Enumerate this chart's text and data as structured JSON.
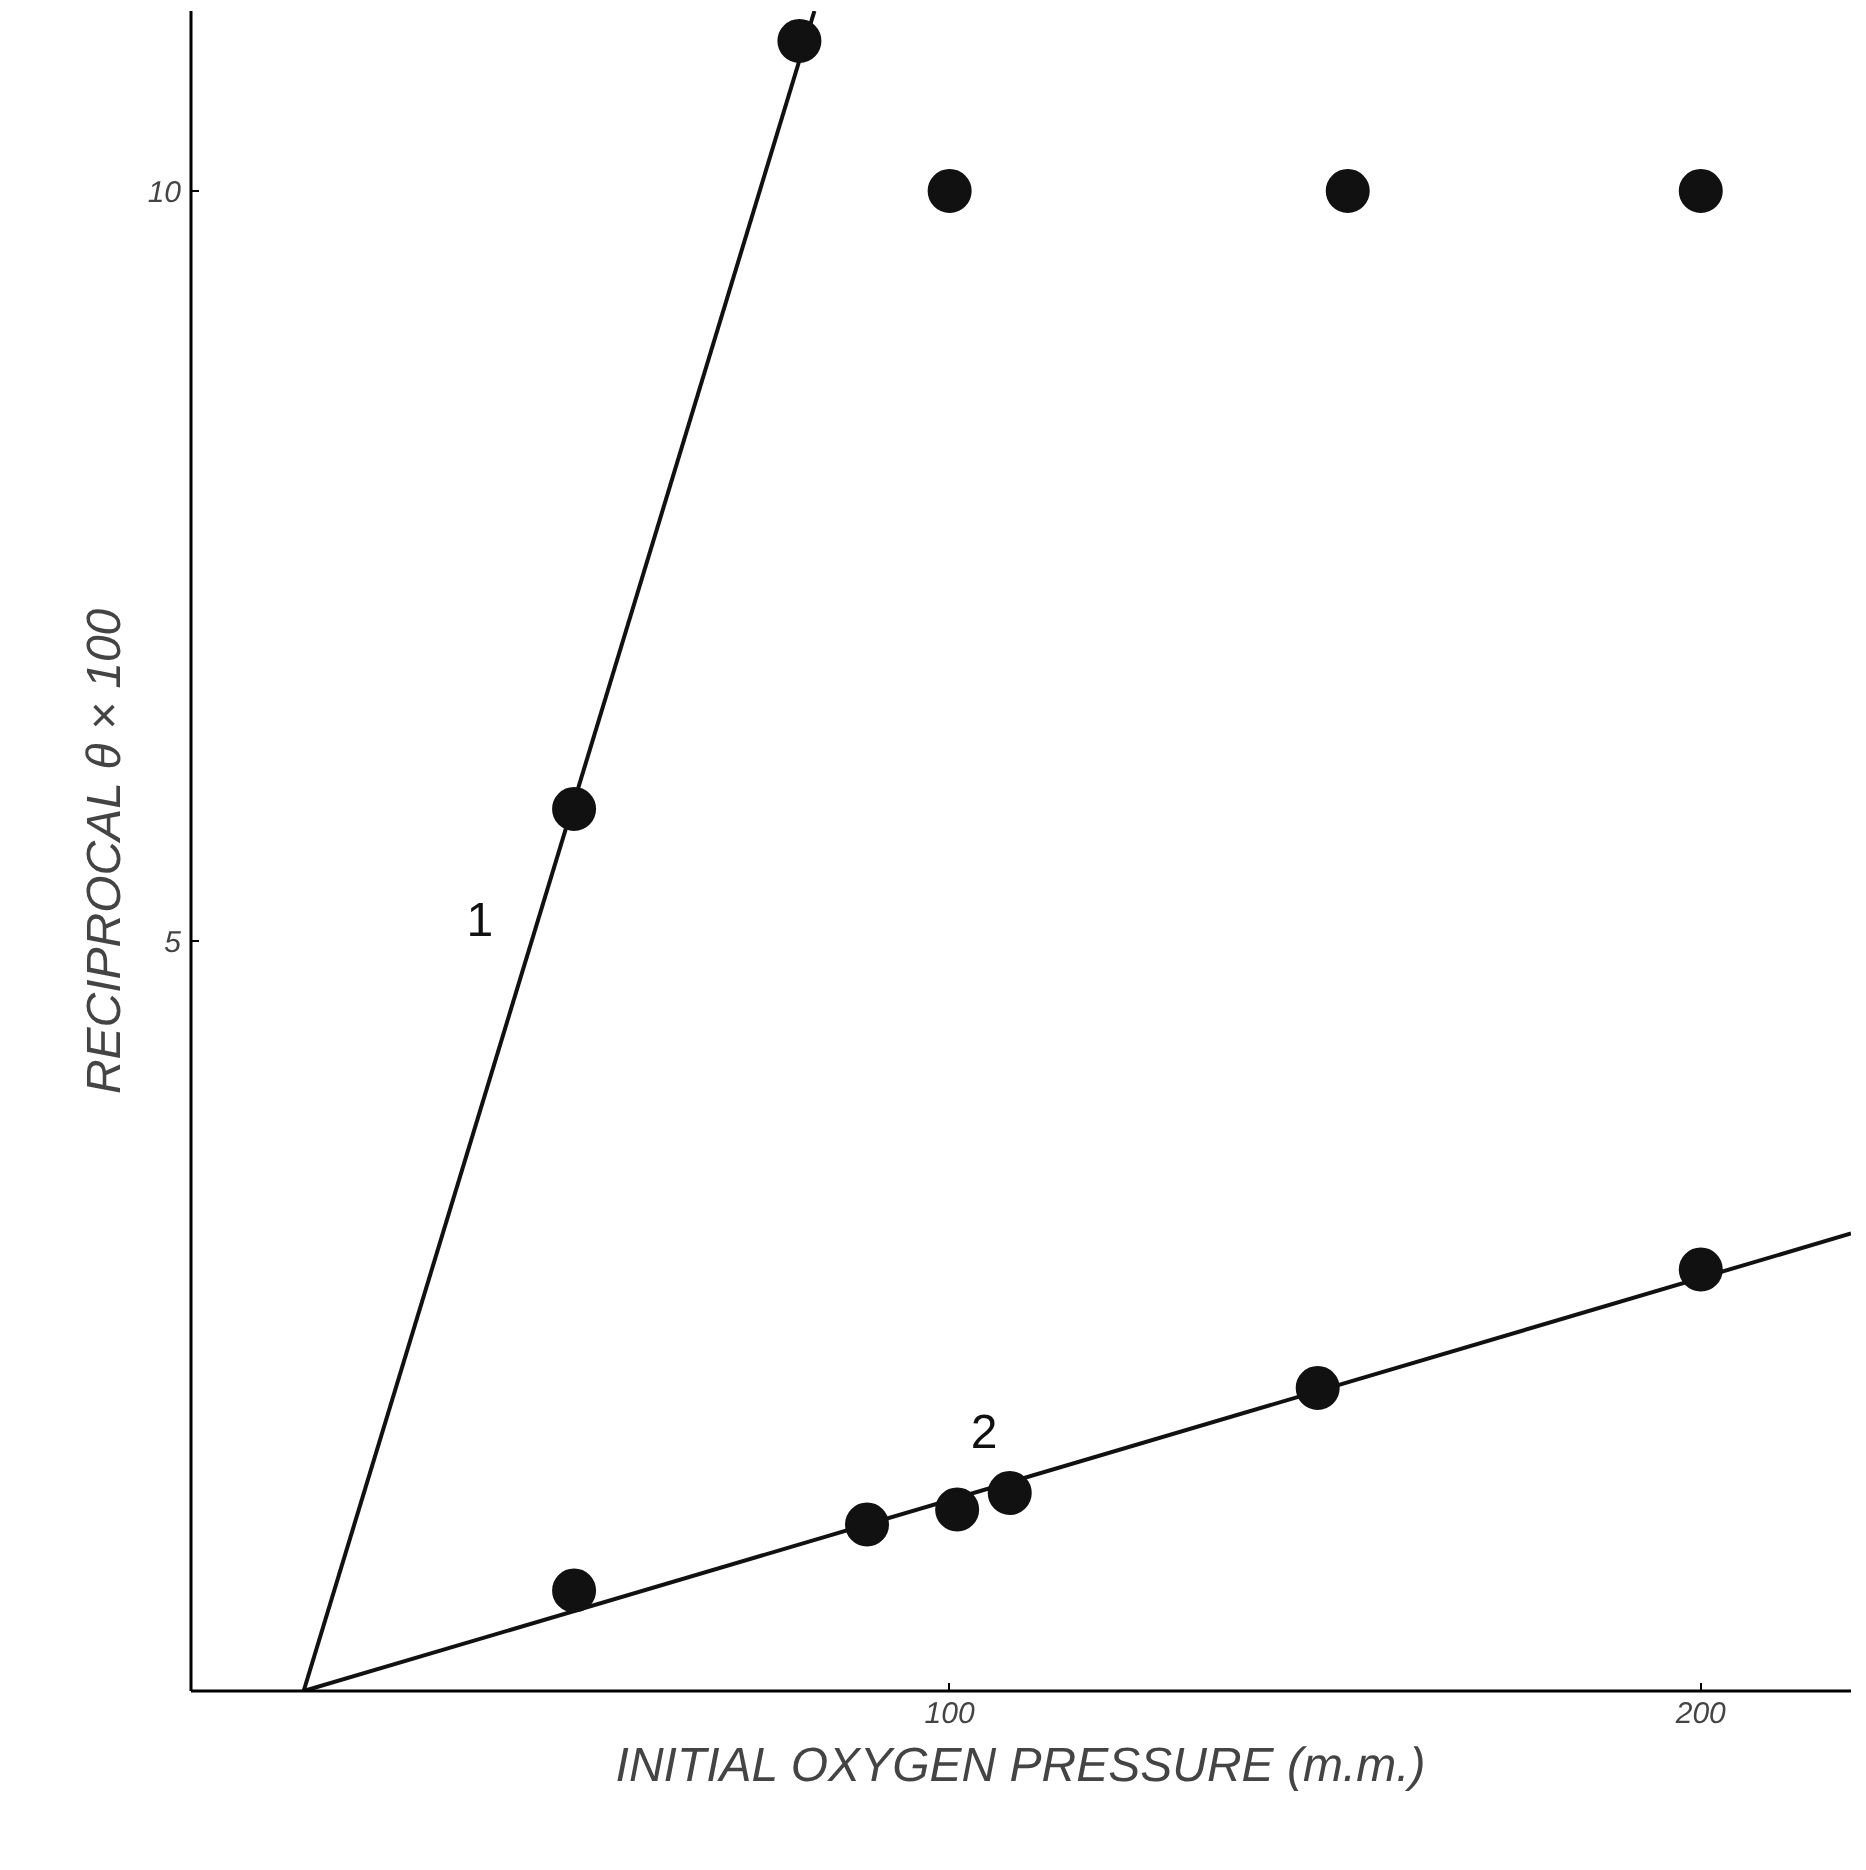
{
  "chart_data": {
    "type": "scatter",
    "xlabel": "INITIAL OXYGEN PRESSURE (m.m.)",
    "ylabel": "RECIPROCAL θ × 100",
    "xlim": [
      -1,
      220
    ],
    "ylim": [
      0,
      11.2
    ],
    "xticks": [
      100,
      200
    ],
    "yticks": [
      5,
      10
    ],
    "grid": false,
    "marker": "circle",
    "series": [
      {
        "type": "line",
        "marker": "none",
        "name": "1",
        "color": "#111111",
        "x": [
          14,
          82
        ],
        "values": [
          0,
          11.2
        ]
      },
      {
        "type": "line",
        "marker": "none",
        "name": "2",
        "color": "#111111",
        "x": [
          14,
          220
        ],
        "values": [
          0,
          3.05
        ]
      },
      {
        "color": "#111111",
        "x": [
          50,
          80,
          100,
          153,
          200
        ],
        "values": [
          5.88,
          11,
          10,
          10,
          10
        ]
      },
      {
        "color": "#111111",
        "x": [
          50,
          89,
          101,
          108,
          149,
          200
        ],
        "values": [
          0.67,
          1.11,
          1.21,
          1.32,
          2.02,
          2.81
        ]
      }
    ]
  }
}
